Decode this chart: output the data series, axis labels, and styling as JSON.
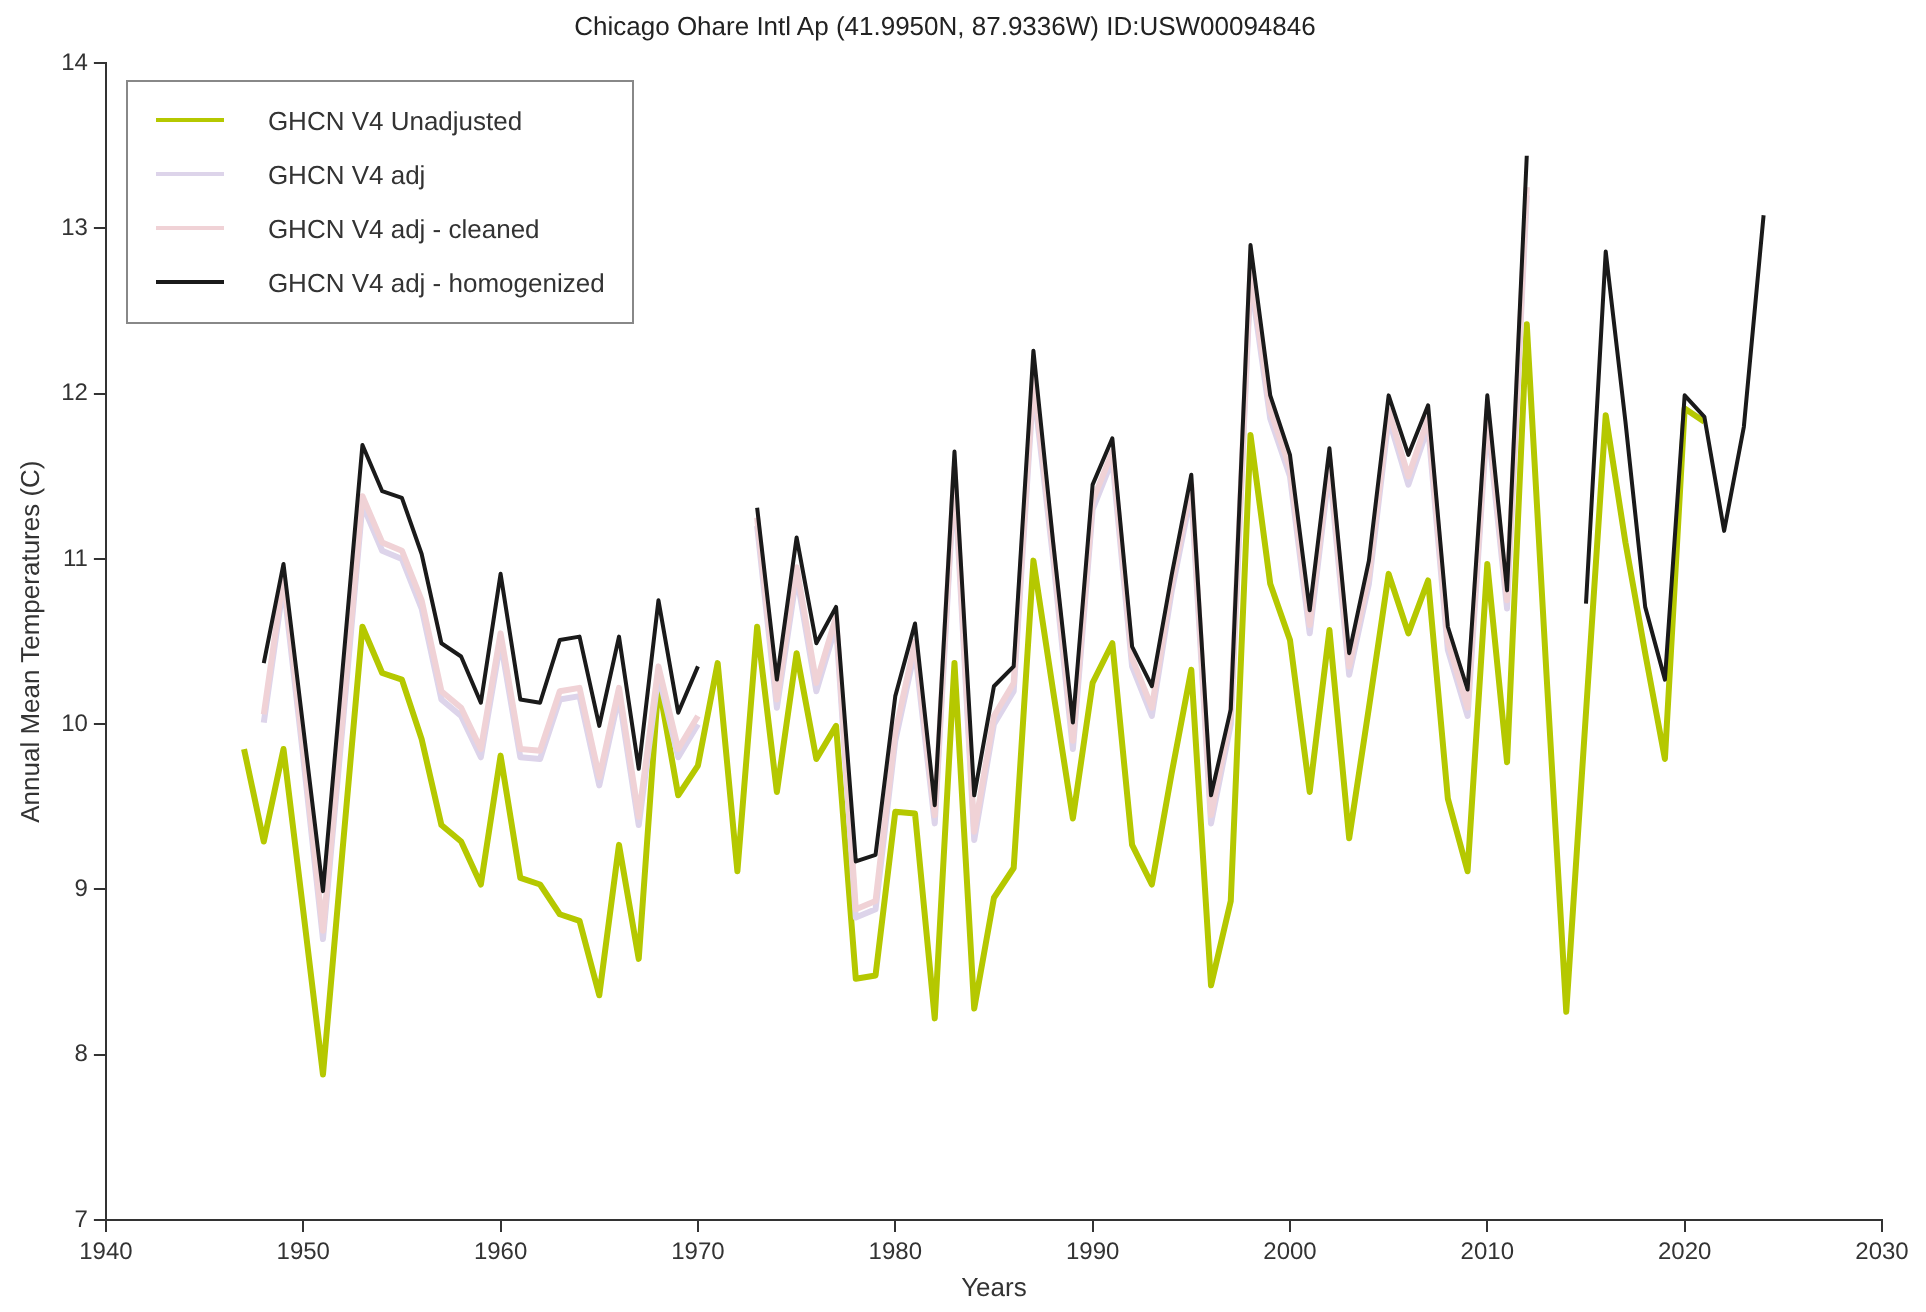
{
  "chart_data": {
    "type": "line",
    "title": "Chicago Ohare Intl Ap (41.9950N, 87.9336W) ID:USW00094846",
    "xlabel": "Years",
    "ylabel": "Annual Mean Temperatures (C)",
    "x": [
      1947,
      1948,
      1949,
      1950,
      1951,
      1952,
      1953,
      1954,
      1955,
      1956,
      1957,
      1958,
      1959,
      1960,
      1961,
      1962,
      1963,
      1964,
      1965,
      1966,
      1967,
      1968,
      1969,
      1970,
      1971,
      1972,
      1973,
      1974,
      1975,
      1976,
      1977,
      1978,
      1979,
      1980,
      1981,
      1982,
      1983,
      1984,
      1985,
      1986,
      1987,
      1988,
      1989,
      1990,
      1991,
      1992,
      1993,
      1994,
      1995,
      1996,
      1997,
      1998,
      1999,
      2000,
      2001,
      2002,
      2003,
      2004,
      2005,
      2006,
      2007,
      2008,
      2009,
      2010,
      2011,
      2012,
      2013,
      2014,
      2015,
      2016,
      2017,
      2018,
      2019,
      2020,
      2021,
      2022,
      2023,
      2024
    ],
    "series": [
      {
        "name": "GHCN V4 Unadjusted",
        "color": "#b5c800",
        "values": [
          9.85,
          9.29,
          9.85,
          8.87,
          7.88,
          9.25,
          10.59,
          10.31,
          10.27,
          9.91,
          9.39,
          9.29,
          9.03,
          9.81,
          9.07,
          9.03,
          8.85,
          8.81,
          8.36,
          9.27,
          8.58,
          10.25,
          9.57,
          9.75,
          10.37,
          9.11,
          10.59,
          9.59,
          10.43,
          9.79,
          9.99,
          8.46,
          8.48,
          9.47,
          9.46,
          8.22,
          10.37,
          8.28,
          8.95,
          9.13,
          10.99,
          10.2,
          9.43,
          10.25,
          10.49,
          9.27,
          9.03,
          9.7,
          10.33,
          8.42,
          8.93,
          11.75,
          10.85,
          10.51,
          9.59,
          10.57,
          9.31,
          10.1,
          10.91,
          10.55,
          10.87,
          9.55,
          9.11,
          10.97,
          9.77,
          12.42,
          10.3,
          8.26,
          10.07,
          11.87,
          11.1,
          10.43,
          9.79,
          11.91,
          11.83,
          null,
          null,
          null
        ]
      },
      {
        "name": "GHCN V4 adj",
        "color": "#ddd4ea",
        "values": [
          null,
          10.01,
          10.85,
          9.8,
          8.7,
          10.0,
          11.33,
          11.05,
          11.0,
          10.7,
          10.15,
          10.05,
          9.8,
          10.5,
          9.8,
          9.79,
          10.15,
          10.17,
          9.63,
          10.17,
          9.39,
          10.3,
          9.8,
          10.0,
          null,
          null,
          11.2,
          10.1,
          10.9,
          10.2,
          10.6,
          8.83,
          8.88,
          9.9,
          10.45,
          9.4,
          11.5,
          9.3,
          10.0,
          10.2,
          12.05,
          11.0,
          9.85,
          11.3,
          11.6,
          10.35,
          10.05,
          10.8,
          11.4,
          9.4,
          10.0,
          12.7,
          11.85,
          11.5,
          10.55,
          11.55,
          10.3,
          10.85,
          11.85,
          11.45,
          11.8,
          10.45,
          10.05,
          11.85,
          10.7,
          13.2,
          null,
          null,
          null,
          null,
          null,
          null,
          null,
          null,
          null,
          null,
          null,
          null
        ]
      },
      {
        "name": "GHCN V4 adj - cleaned",
        "color": "#f0d2d6",
        "values": [
          null,
          10.06,
          10.9,
          9.85,
          8.75,
          10.05,
          11.38,
          11.1,
          11.05,
          10.75,
          10.2,
          10.1,
          9.85,
          10.55,
          9.85,
          9.84,
          10.2,
          10.22,
          9.68,
          10.22,
          9.44,
          10.35,
          9.85,
          10.05,
          null,
          null,
          11.25,
          10.15,
          10.95,
          10.25,
          10.65,
          8.88,
          8.93,
          9.95,
          10.5,
          9.45,
          11.55,
          9.35,
          10.05,
          10.25,
          12.1,
          11.05,
          9.9,
          11.35,
          11.65,
          10.4,
          10.1,
          10.85,
          11.45,
          9.45,
          10.05,
          12.75,
          11.9,
          11.55,
          10.6,
          11.6,
          10.35,
          10.9,
          11.9,
          11.5,
          11.85,
          10.5,
          10.1,
          11.9,
          10.75,
          13.25,
          null,
          null,
          null,
          null,
          null,
          null,
          null,
          null,
          null,
          null,
          null,
          null
        ]
      },
      {
        "name": "GHCN V4 adj - homogenized",
        "color": "#1a1a1a",
        "values": [
          null,
          10.37,
          10.97,
          9.98,
          8.99,
          10.34,
          11.69,
          11.41,
          11.37,
          11.03,
          10.49,
          10.41,
          10.13,
          10.91,
          10.15,
          10.13,
          10.51,
          10.53,
          9.99,
          10.53,
          9.73,
          10.75,
          10.07,
          10.35,
          null,
          null,
          11.31,
          10.27,
          11.13,
          10.49,
          10.71,
          9.17,
          9.21,
          10.17,
          10.61,
          9.51,
          11.65,
          9.57,
          10.23,
          10.35,
          12.26,
          11.1,
          10.01,
          11.45,
          11.73,
          10.47,
          10.23,
          10.9,
          11.51,
          9.57,
          10.09,
          12.9,
          11.99,
          11.63,
          10.69,
          11.67,
          10.43,
          10.99,
          11.99,
          11.63,
          11.93,
          10.59,
          10.21,
          11.99,
          10.81,
          13.44,
          null,
          null,
          10.73,
          12.86,
          11.83,
          10.71,
          10.27,
          11.99,
          11.86,
          11.17,
          11.8,
          13.08
        ]
      }
    ],
    "xlim": [
      1940,
      2030
    ],
    "xticks": [
      1940,
      1950,
      1960,
      1970,
      1980,
      1990,
      2000,
      2010,
      2020,
      2030
    ],
    "ylim": [
      7,
      14
    ],
    "yticks": [
      7,
      8,
      9,
      10,
      11,
      12,
      13,
      14
    ],
    "grid": false,
    "legend": "top left",
    "marker": "none",
    "line_style": "solid"
  }
}
